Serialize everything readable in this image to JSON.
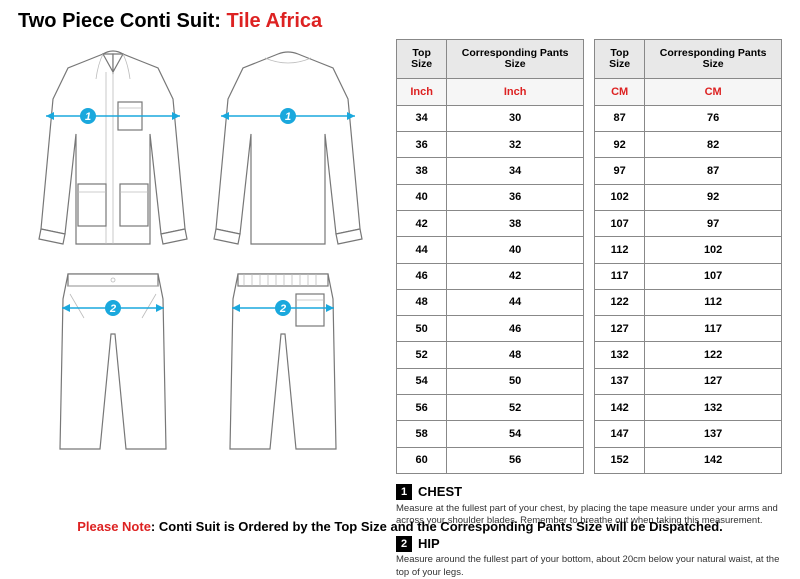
{
  "header": {
    "prefix": "Two Piece Conti Suit: ",
    "brand": "Tile Africa"
  },
  "arrow_color": "#1aa8dd",
  "diagram": {
    "chest_num": "1",
    "hip_num": "2"
  },
  "table_inch": {
    "headers": [
      "Top Size",
      "Corresponding Pants Size"
    ],
    "unit": "Inch",
    "rows": [
      [
        "34",
        "30"
      ],
      [
        "36",
        "32"
      ],
      [
        "38",
        "34"
      ],
      [
        "40",
        "36"
      ],
      [
        "42",
        "38"
      ],
      [
        "44",
        "40"
      ],
      [
        "46",
        "42"
      ],
      [
        "48",
        "44"
      ],
      [
        "50",
        "46"
      ],
      [
        "52",
        "48"
      ],
      [
        "54",
        "50"
      ],
      [
        "56",
        "52"
      ],
      [
        "58",
        "54"
      ],
      [
        "60",
        "56"
      ]
    ]
  },
  "table_cm": {
    "headers": [
      "Top Size",
      "Corresponding Pants Size"
    ],
    "unit": "CM",
    "rows": [
      [
        "87",
        "76"
      ],
      [
        "92",
        "82"
      ],
      [
        "97",
        "87"
      ],
      [
        "102",
        "92"
      ],
      [
        "107",
        "97"
      ],
      [
        "112",
        "102"
      ],
      [
        "117",
        "107"
      ],
      [
        "122",
        "112"
      ],
      [
        "127",
        "117"
      ],
      [
        "132",
        "122"
      ],
      [
        "137",
        "127"
      ],
      [
        "142",
        "132"
      ],
      [
        "147",
        "137"
      ],
      [
        "152",
        "142"
      ]
    ]
  },
  "instructions": [
    {
      "num": "1",
      "title": "CHEST",
      "text": "Measure at the fullest part of your chest, by placing the tape measure under your arms and across your shoulder blades. Remember to breathe out when taking this measurement."
    },
    {
      "num": "2",
      "title": "HIP",
      "text": "Measure around the fullest part of your bottom, about 20cm below your natural waist, at the top of your legs."
    }
  ],
  "footer": {
    "pn": "Please Note",
    "text": ": Conti Suit is Ordered by the Top Size and the Corresponding Pants Size will be Dispatched."
  }
}
